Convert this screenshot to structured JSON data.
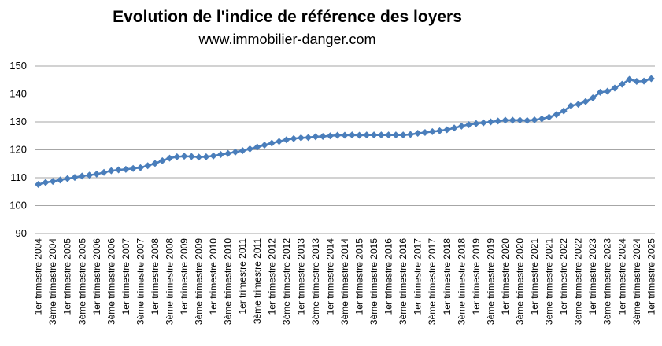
{
  "chart_data": {
    "type": "line",
    "title": "Evolution de l'indice de référence des loyers",
    "subtitle": "www.immobilier-danger.com",
    "categories": [
      "1er trimestre 2004",
      null,
      "3ème trimestre 2004",
      null,
      "1er trimestre 2005",
      null,
      "3ème trimestre 2005",
      null,
      "1er trimestre 2006",
      null,
      "3ème trimestre 2006",
      null,
      "1er trimestre 2007",
      null,
      "3ème trimestre 2007",
      null,
      "1er trimestre 2008",
      null,
      "3ème trimestre 2008",
      null,
      "1er trimestre 2009",
      null,
      "3ème trimestre 2009",
      null,
      "1er trimestre 2010",
      null,
      "3ème trimestre 2010",
      null,
      "1er trimestre 2011",
      null,
      "3ème trimestre 2011",
      null,
      "1er trimestre 2012",
      null,
      "3ème trimestre 2012",
      null,
      "1er trimestre 2013",
      null,
      "3ème trimestre 2013",
      null,
      "1er trimestre 2014",
      null,
      "3ème trimestre 2014",
      null,
      "1er trimestre 2015",
      null,
      "3ème trimestre 2015",
      null,
      "1er trimestre 2016",
      null,
      "3ème trimestre 2016",
      null,
      "1er trimestre 2017",
      null,
      "3ème trimestre 2017",
      null,
      "1er trimestre 2018",
      null,
      "3ème trimestre 2018",
      null,
      "1er trimestre 2019",
      null,
      "3ème trimestre 2019",
      null,
      "1er trimestre 2020",
      null,
      "3ème trimestre 2020",
      null,
      "1er trimestre 2021",
      null,
      "3ème trimestre 2021",
      null,
      "1er trimestre 2022",
      null,
      "3ème trimestre 2022",
      null,
      "1er trimestre 2023",
      null,
      "3ème trimestre 2023",
      null,
      "1er trimestre 2024",
      null,
      "3ème trimestre 2024",
      null,
      "1er trimestre 2025"
    ],
    "values": [
      107.6,
      108.3,
      108.7,
      109.2,
      109.7,
      110.1,
      110.6,
      110.9,
      111.3,
      111.9,
      112.5,
      112.8,
      113.0,
      113.3,
      113.6,
      114.3,
      115.1,
      116.1,
      117.0,
      117.5,
      117.7,
      117.6,
      117.4,
      117.5,
      117.8,
      118.3,
      118.7,
      119.2,
      119.7,
      120.3,
      121.0,
      121.7,
      122.4,
      123.0,
      123.6,
      124.0,
      124.3,
      124.4,
      124.7,
      124.8,
      125.0,
      125.2,
      125.2,
      125.3,
      125.2,
      125.3,
      125.3,
      125.3,
      125.3,
      125.3,
      125.3,
      125.5,
      125.9,
      126.2,
      126.5,
      126.8,
      127.2,
      127.8,
      128.5,
      129.0,
      129.4,
      129.7,
      130.0,
      130.3,
      130.6,
      130.6,
      130.6,
      130.5,
      130.7,
      131.1,
      131.7,
      132.6,
      133.9,
      135.8,
      136.3,
      137.3,
      138.6,
      140.6,
      141.0,
      142.1,
      143.5,
      145.2,
      144.5,
      144.6,
      145.5
    ],
    "color": "#4a7ebb",
    "ylim": [
      90,
      150
    ],
    "yticks": [
      90,
      100,
      110,
      120,
      130,
      140,
      150
    ],
    "grid": true
  }
}
